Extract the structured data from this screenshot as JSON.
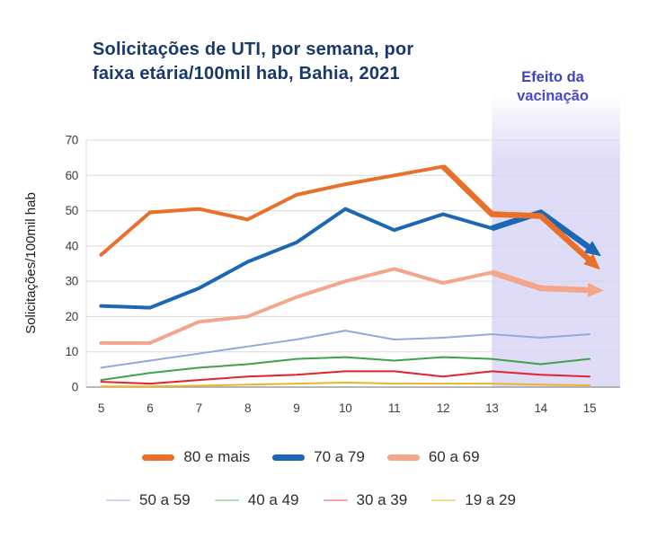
{
  "title_lines": {
    "line1": "Solicitações de UTI, por semana, por",
    "line2": "faixa etária/100mil hab, Bahia, 2021"
  },
  "annotation": {
    "line1": "Efeito da",
    "line2": "vacinação",
    "color": "#4140C8"
  },
  "chart_data": {
    "type": "line",
    "title": "Solicitações de UTI, por semana, por faixa etária/100mil hab, Bahia, 2021",
    "xlabel": "",
    "ylabel": "Solicitações/100mil hab",
    "x": [
      5,
      6,
      7,
      8,
      9,
      10,
      11,
      12,
      13,
      14,
      15
    ],
    "ylim": [
      0,
      70
    ],
    "y_ticks": [
      0,
      10,
      20,
      30,
      40,
      50,
      60,
      70
    ],
    "grid": "horizontal",
    "legend_position": "bottom",
    "shaded_region": {
      "from_x": 13,
      "fill": "#DEDCF7",
      "meaning": "Efeito da vacinação"
    },
    "series": [
      {
        "name": "80 e mais",
        "color": "#E8702A",
        "line_weight": "thick",
        "arrow_end": true,
        "emphasized_decline_from_x": 12,
        "values": [
          37.5,
          49.5,
          50.5,
          47.5,
          54.5,
          57.5,
          60,
          62.5,
          49,
          48.5,
          36
        ]
      },
      {
        "name": "70 a 79",
        "color": "#1B67B3",
        "line_weight": "thick",
        "arrow_end": true,
        "emphasized_decline_from_x": 13,
        "values": [
          23,
          22.5,
          28,
          35.5,
          41,
          50.5,
          44.5,
          49,
          45,
          49.5,
          39.5
        ]
      },
      {
        "name": "60 a 69",
        "color": "#F4A68A",
        "line_weight": "thick",
        "arrow_end": true,
        "emphasized_decline_from_x": 13,
        "values": [
          12.5,
          12.5,
          18.5,
          20,
          25.5,
          30,
          33.5,
          29.5,
          32.5,
          28,
          27.5
        ]
      },
      {
        "name": "50 a 59",
        "color": "#92A9DC",
        "line_weight": "thin",
        "arrow_end": false,
        "values": [
          5.5,
          7.5,
          9.5,
          11.5,
          13.5,
          16,
          13.5,
          14,
          15,
          14,
          15
        ]
      },
      {
        "name": "40 a 49",
        "color": "#3FA14A",
        "line_weight": "thin",
        "arrow_end": false,
        "values": [
          2,
          4,
          5.5,
          6.5,
          8,
          8.5,
          7.5,
          8.5,
          8,
          6.5,
          8
        ]
      },
      {
        "name": "30 a 39",
        "color": "#E8202C",
        "line_weight": "thin",
        "arrow_end": false,
        "values": [
          1.5,
          1,
          2,
          3,
          3.5,
          4.5,
          4.5,
          3,
          4.5,
          3.5,
          3
        ]
      },
      {
        "name": "19 a 29",
        "color": "#F0B429",
        "line_weight": "thin",
        "arrow_end": false,
        "values": [
          0.2,
          0.2,
          0.4,
          0.7,
          1,
          1.3,
          1,
          1,
          1,
          0.7,
          0.5
        ]
      }
    ]
  },
  "legend": {
    "row1": [
      {
        "label": "80 e mais",
        "color": "#E8702A"
      },
      {
        "label": "70 a 79",
        "color": "#1B67B3"
      },
      {
        "label": "60 a 69",
        "color": "#F4A68A"
      }
    ],
    "row2": [
      {
        "label": "50 a 59",
        "color": "#CCD6EC"
      },
      {
        "label": "40 a 49",
        "color": "#B4D7B4"
      },
      {
        "label": "30 a 39",
        "color": "#F6A5AB"
      },
      {
        "label": "19 a 29",
        "color": "#F8D795"
      }
    ]
  },
  "style_colors": {
    "title": "#17396B",
    "gridline": "#D9D9D9",
    "axis_line": "#9E9E9E",
    "tick_text": "#3D3D3D"
  }
}
